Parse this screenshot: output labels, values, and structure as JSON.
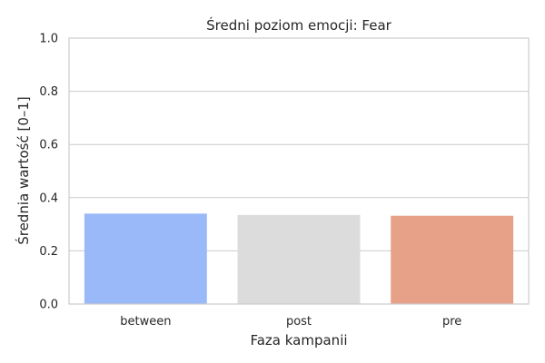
{
  "chart_data": {
    "type": "bar",
    "title": "Średni poziom emocji: Fear",
    "xlabel": "Faza kampanii",
    "ylabel": "Średnia wartość [0–1]",
    "categories": [
      "between",
      "post",
      "pre"
    ],
    "values": [
      0.34,
      0.335,
      0.332
    ],
    "colors": [
      "#9ab9f9",
      "#dcdcdc",
      "#e8a189"
    ],
    "ylim": [
      0,
      1.0
    ],
    "yticks": [
      "0.0",
      "0.2",
      "0.4",
      "0.6",
      "0.8",
      "1.0"
    ],
    "grid": true,
    "grid_axis": "y",
    "legend": "none"
  }
}
